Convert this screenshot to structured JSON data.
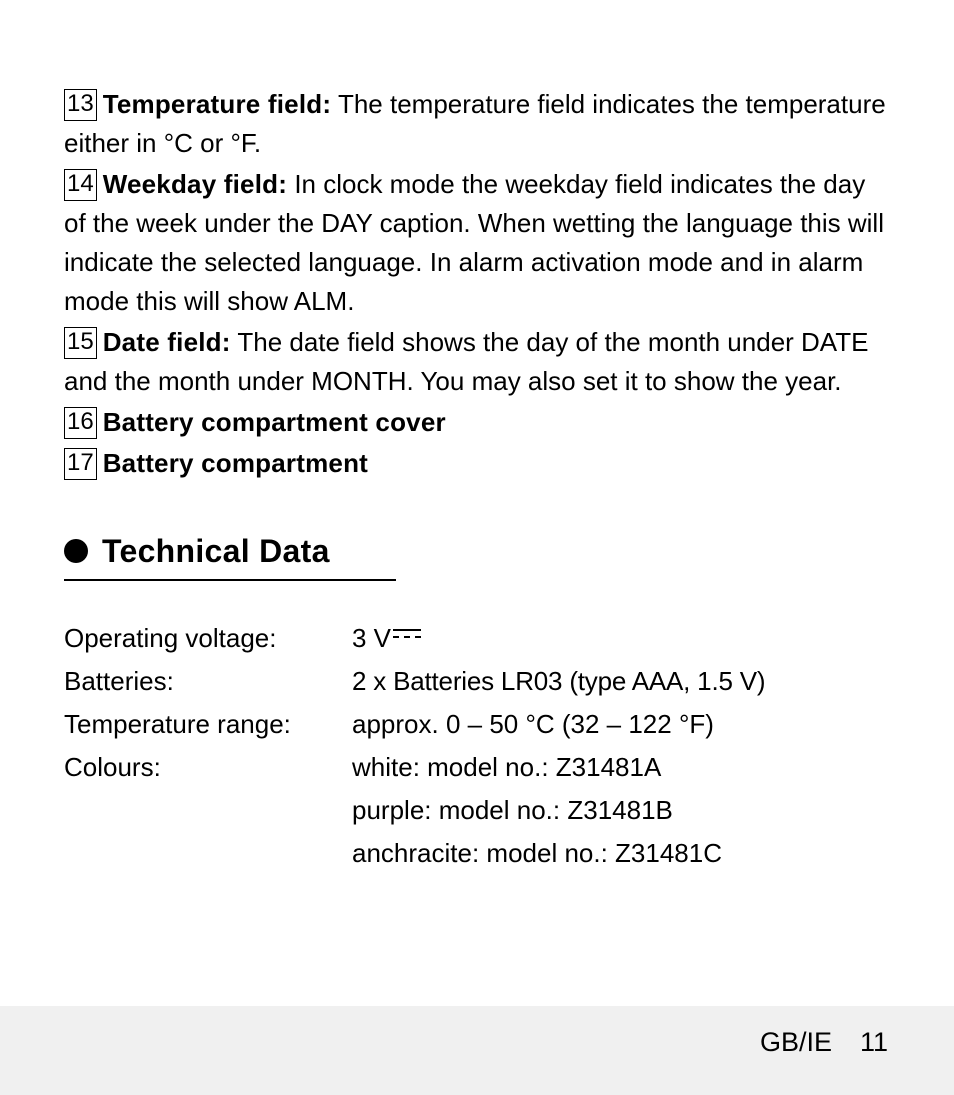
{
  "items": [
    {
      "num": "13",
      "title": "Temperature field:",
      "desc": " The temperature field indicates the temperature either in °C or °F."
    },
    {
      "num": "14",
      "title": "Weekday field:",
      "desc": " In clock mode the weekday field indicates the day of the week under the DAY caption. When wetting the language this will indicate the selected language. In alarm activation mode and in alarm mode this will show ALM."
    },
    {
      "num": "15",
      "title": "Date field:",
      "desc": " The date field shows the day of the month under DATE and the month under MONTH. You may also set it to show the year."
    },
    {
      "num": "16",
      "title": "Battery compartment cover",
      "desc": ""
    },
    {
      "num": "17",
      "title": "Battery compartment",
      "desc": ""
    }
  ],
  "section_title": "Technical Data",
  "specs": {
    "operating_voltage_label": "Operating voltage:",
    "operating_voltage_value": "3 V",
    "batteries_label": "Batteries:",
    "batteries_value": "2 x Batteries LR03 (type AAA, 1.5 V)",
    "temp_range_label": "Temperature range:",
    "temp_range_value": "approx. 0 – 50 °C (32 – 122 °F)",
    "colours_label": "Colours:",
    "colours_white": "white: model no.: Z31481A",
    "colours_purple": "purple: model no.: Z31481B",
    "colours_anch": "anchracite: model no.: Z31481C"
  },
  "footer": {
    "region": "GB/IE",
    "page_number": "11"
  }
}
